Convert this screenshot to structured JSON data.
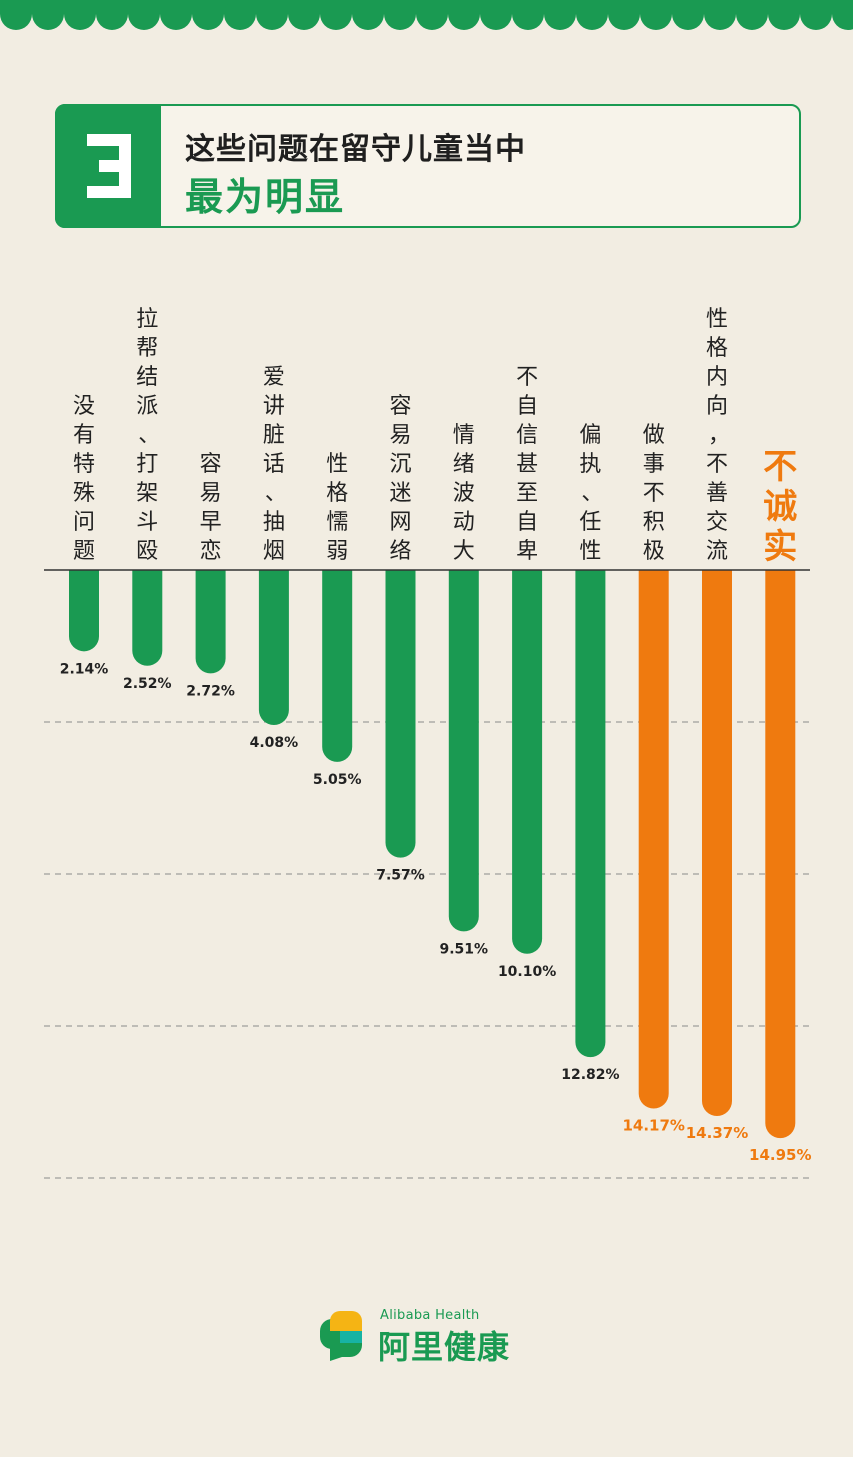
{
  "header": {
    "number": "3",
    "title_line1": "这些问题在留守儿童当中",
    "title_line2": "最为明显"
  },
  "colors": {
    "green": "#1a9a52",
    "orange": "#ef7a0f",
    "text": "#222222"
  },
  "chart_data": {
    "type": "bar",
    "orientation": "vertical-down",
    "categories": [
      "没有特殊问题",
      "拉帮结派、打架斗殴",
      "容易早恋",
      "爱讲脏话、抽烟",
      "性格懦弱",
      "容易沉迷网络",
      "情绪波动大",
      "不自信甚至自卑",
      "偏执、任性",
      "做事不积极",
      "性格内向，不善交流",
      "不诚实"
    ],
    "values": [
      2.14,
      2.52,
      2.72,
      4.08,
      5.05,
      7.57,
      9.51,
      10.1,
      12.82,
      14.17,
      14.37,
      14.95
    ],
    "value_labels": [
      "2.14%",
      "2.52%",
      "2.72%",
      "4.08%",
      "5.05%",
      "7.57%",
      "9.51%",
      "10.10%",
      "12.82%",
      "14.17%",
      "14.37%",
      "14.95%"
    ],
    "highlight": [
      false,
      false,
      false,
      false,
      false,
      false,
      false,
      false,
      false,
      true,
      true,
      true
    ],
    "ylim": [
      0,
      16
    ],
    "grid": true
  },
  "logo": {
    "en": "Alibaba Health",
    "cn": "阿里健康"
  }
}
